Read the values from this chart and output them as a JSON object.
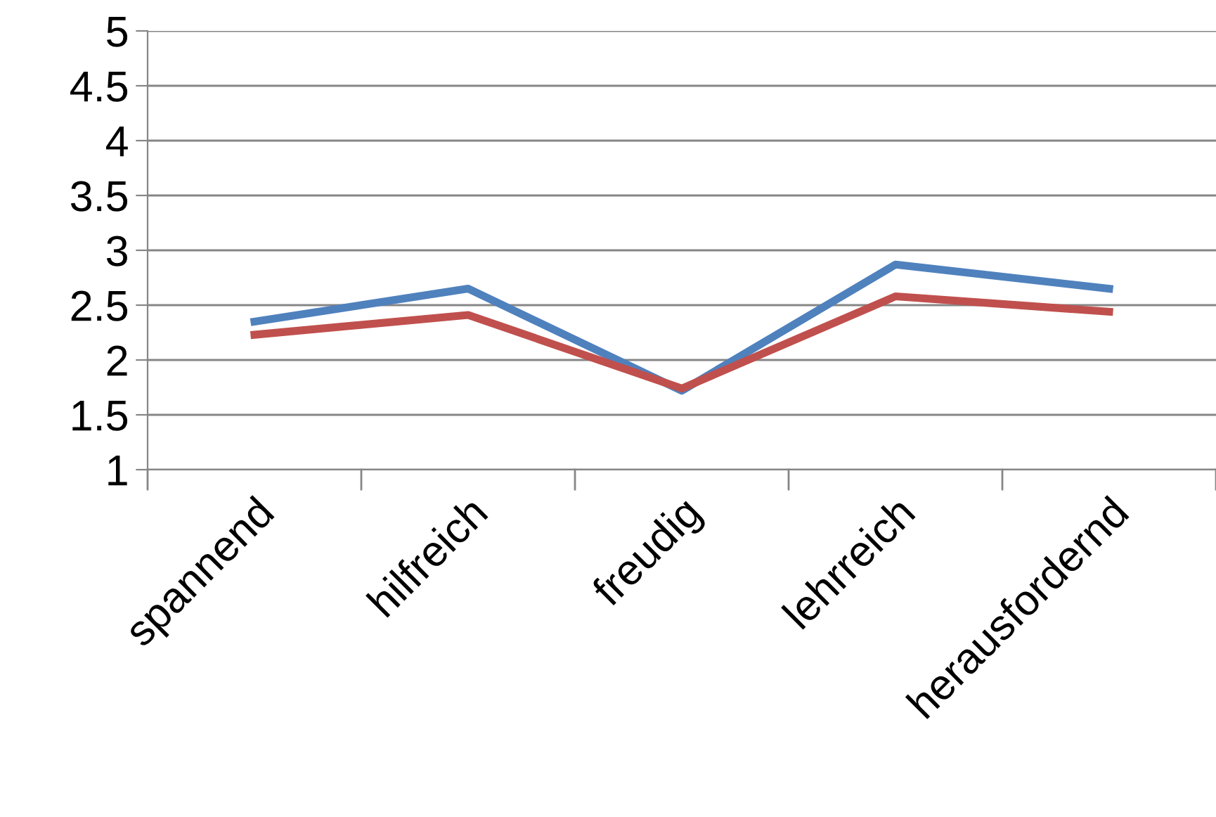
{
  "chart_data": {
    "type": "line",
    "categories": [
      "spannend",
      "hilfreich",
      "freudig",
      "lehrreich",
      "herausfordernd"
    ],
    "series": [
      {
        "color": "#4f81bd",
        "values": [
          2.35,
          2.65,
          1.72,
          2.87,
          2.65
        ]
      },
      {
        "color": "#c0504d",
        "values": [
          2.23,
          2.41,
          1.74,
          2.58,
          2.44
        ]
      }
    ],
    "ylim": [
      1,
      5
    ],
    "yticks": [
      1,
      1.5,
      2,
      2.5,
      3,
      3.5,
      4,
      4.5,
      5
    ],
    "grid": "y",
    "marker": "none",
    "line_style": "solid"
  }
}
